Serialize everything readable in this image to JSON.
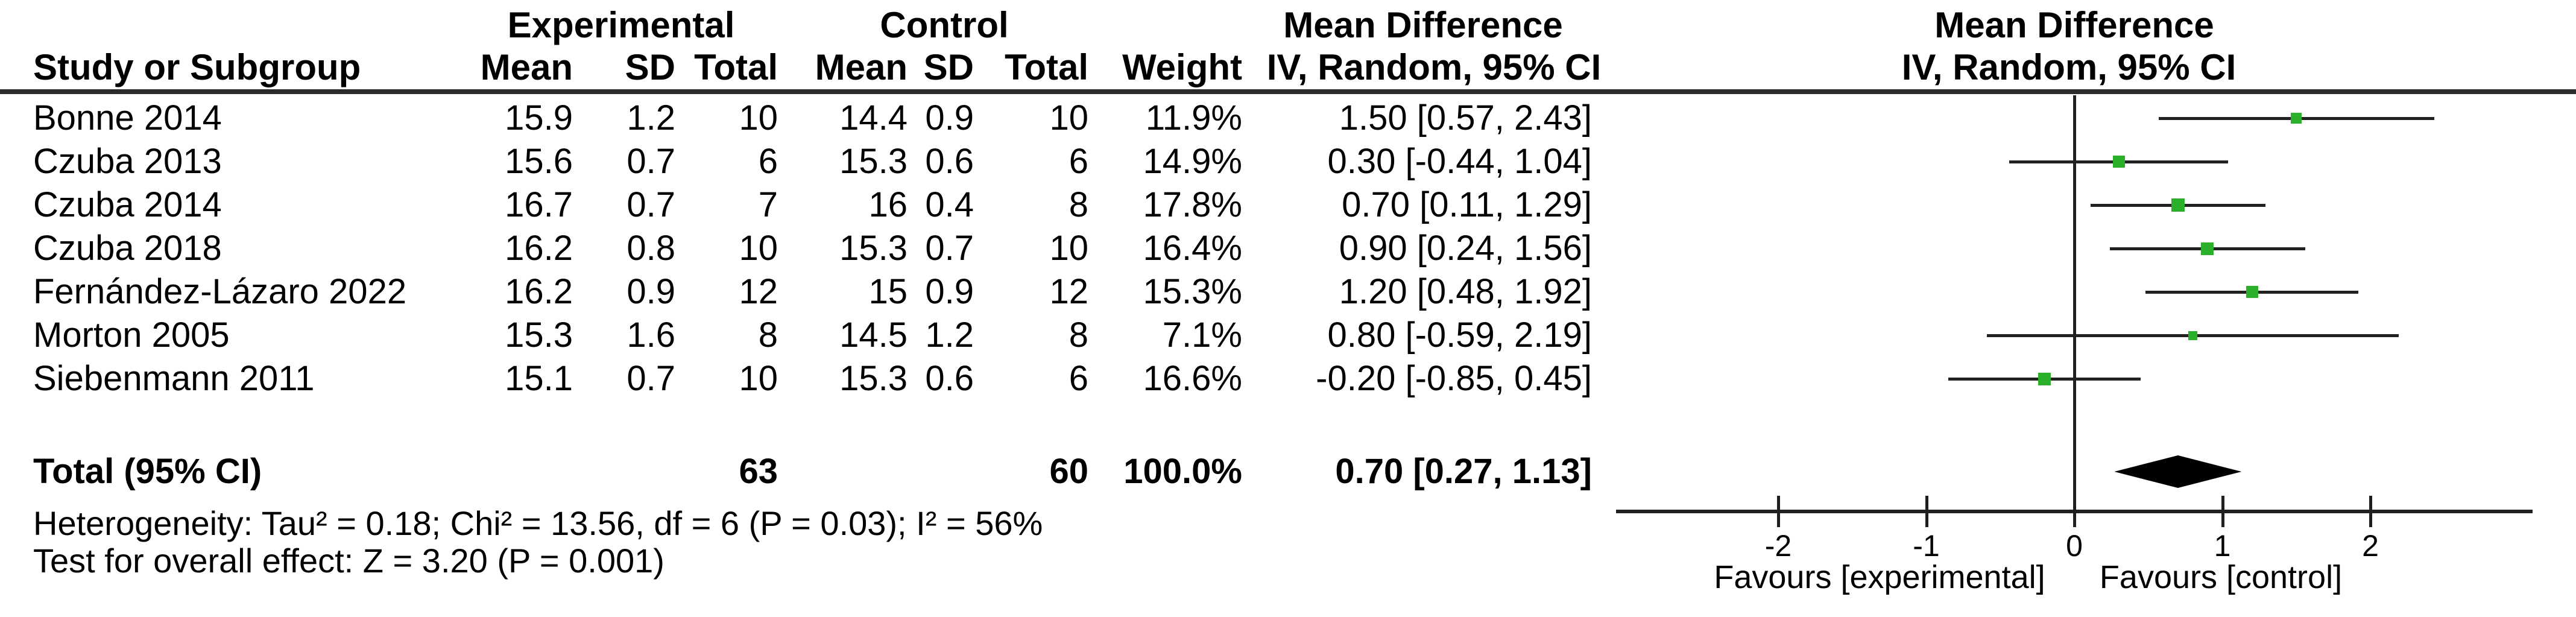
{
  "title_headers": {
    "experimental": "Experimental",
    "control": "Control",
    "md_left": "Mean Difference",
    "md_right": "Mean Difference",
    "study": "Study or Subgroup",
    "mean": "Mean",
    "sd": "SD",
    "total": "Total",
    "mean2": "Mean",
    "sd2": "SD",
    "total2": "Total",
    "weight": "Weight",
    "ci_method_left": "IV, Random, 95% CI",
    "ci_method_right": "IV, Random, 95% CI"
  },
  "chart_data": {
    "type": "scatter",
    "subtype": "forest-plot",
    "effect_measure": "Mean Difference, IV, Random, 95% CI",
    "x_axis": {
      "ticks": [
        -2,
        -1,
        0,
        1,
        2
      ],
      "range": [
        -3.1,
        3.1
      ],
      "favours_left": "Favours [experimental]",
      "favours_right": "Favours [control]"
    },
    "studies": [
      {
        "study": "Bonne 2014",
        "exp": {
          "mean": "15.9",
          "sd": "1.2",
          "total": "10"
        },
        "ctrl": {
          "mean": "14.4",
          "sd": "0.9",
          "total": "10"
        },
        "weight": "11.9%",
        "weight_pct": 11.9,
        "ci_text": "1.50 [0.57, 2.43]",
        "md": 1.5,
        "ci_lo": 0.57,
        "ci_hi": 2.43
      },
      {
        "study": "Czuba 2013",
        "exp": {
          "mean": "15.6",
          "sd": "0.7",
          "total": "6"
        },
        "ctrl": {
          "mean": "15.3",
          "sd": "0.6",
          "total": "6"
        },
        "weight": "14.9%",
        "weight_pct": 14.9,
        "ci_text": "0.30 [-0.44, 1.04]",
        "md": 0.3,
        "ci_lo": -0.44,
        "ci_hi": 1.04
      },
      {
        "study": "Czuba 2014",
        "exp": {
          "mean": "16.7",
          "sd": "0.7",
          "total": "7"
        },
        "ctrl": {
          "mean": "16",
          "sd": "0.4",
          "total": "8"
        },
        "weight": "17.8%",
        "weight_pct": 17.8,
        "ci_text": "0.70 [0.11, 1.29]",
        "md": 0.7,
        "ci_lo": 0.11,
        "ci_hi": 1.29
      },
      {
        "study": "Czuba 2018",
        "exp": {
          "mean": "16.2",
          "sd": "0.8",
          "total": "10"
        },
        "ctrl": {
          "mean": "15.3",
          "sd": "0.7",
          "total": "10"
        },
        "weight": "16.4%",
        "weight_pct": 16.4,
        "ci_text": "0.90 [0.24, 1.56]",
        "md": 0.9,
        "ci_lo": 0.24,
        "ci_hi": 1.56
      },
      {
        "study": "Fernández-Lázaro 2022",
        "exp": {
          "mean": "16.2",
          "sd": "0.9",
          "total": "12"
        },
        "ctrl": {
          "mean": "15",
          "sd": "0.9",
          "total": "12"
        },
        "weight": "15.3%",
        "weight_pct": 15.3,
        "ci_text": "1.20 [0.48, 1.92]",
        "md": 1.2,
        "ci_lo": 0.48,
        "ci_hi": 1.92
      },
      {
        "study": "Morton 2005",
        "exp": {
          "mean": "15.3",
          "sd": "1.6",
          "total": "8"
        },
        "ctrl": {
          "mean": "14.5",
          "sd": "1.2",
          "total": "8"
        },
        "weight": "7.1%",
        "weight_pct": 7.1,
        "ci_text": "0.80 [-0.59, 2.19]",
        "md": 0.8,
        "ci_lo": -0.59,
        "ci_hi": 2.19
      },
      {
        "study": "Siebenmann 2011",
        "exp": {
          "mean": "15.1",
          "sd": "0.7",
          "total": "10"
        },
        "ctrl": {
          "mean": "15.3",
          "sd": "0.6",
          "total": "6"
        },
        "weight": "16.6%",
        "weight_pct": 16.6,
        "ci_text": "-0.20 [-0.85, 0.45]",
        "md": -0.2,
        "ci_lo": -0.85,
        "ci_hi": 0.45
      }
    ],
    "total": {
      "label": "Total (95% CI)",
      "exp_total": "63",
      "ctrl_total": "60",
      "weight": "100.0%",
      "ci_text": "0.70 [0.27, 1.13]",
      "md": 0.7,
      "ci_lo": 0.27,
      "ci_hi": 1.13
    },
    "footer": {
      "heterogeneity": "Heterogeneity: Tau² = 0.18; Chi² = 13.56, df = 6 (P = 0.03); I² = 56%",
      "overall_effect": "Test for overall effect: Z = 3.20 (P = 0.001)"
    }
  },
  "colors": {
    "marker": "#2bb02b",
    "line": "#1f1f1f",
    "ci_line": "#222222",
    "diamond": "#000000",
    "text": "#000000"
  }
}
